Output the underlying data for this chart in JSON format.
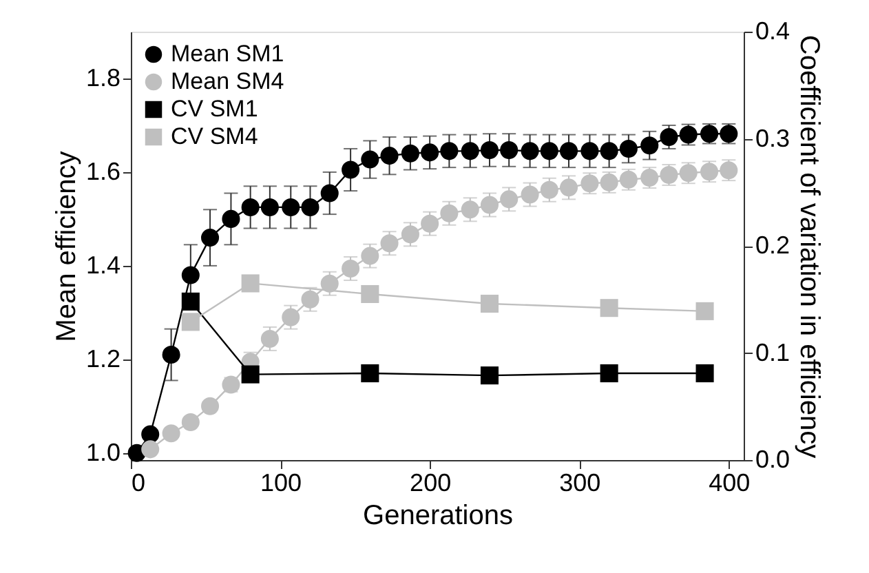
{
  "chart_data": {
    "type": "line",
    "xlabel": "Generations",
    "ylabel": "Mean efficiency",
    "y2label": "Coefficient of variation in efficiency",
    "x": [
      4,
      13,
      27,
      40,
      53,
      67,
      80,
      93,
      107,
      120,
      133,
      147,
      160,
      173,
      187,
      200,
      213,
      227,
      240,
      253,
      267,
      280,
      293,
      307,
      320,
      333,
      347,
      360,
      373,
      387,
      400
    ],
    "xlim": [
      0,
      410
    ],
    "xticks": [
      0,
      100,
      200,
      300,
      400
    ],
    "ylim": [
      0.985,
      1.9
    ],
    "yticks": [
      {
        "value": 1.0,
        "label": "1.0"
      },
      1.2,
      1.4,
      1.6,
      1.8
    ],
    "y2lim": [
      0,
      0.4
    ],
    "y2ticks": [
      {
        "value": 0,
        "label": "0.0"
      },
      0.1,
      0.2,
      0.3,
      0.4
    ],
    "grid": false,
    "legend": "top left",
    "series": [
      {
        "name": "Mean SM1",
        "color": "#000000",
        "marker": "circle",
        "values": [
          1.0,
          1.04,
          1.21,
          1.38,
          1.46,
          1.5,
          1.525,
          1.525,
          1.525,
          1.525,
          1.555,
          1.605,
          1.627,
          1.635,
          1.64,
          1.642,
          1.645,
          1.645,
          1.647,
          1.647,
          1.645,
          1.645,
          1.645,
          1.645,
          1.645,
          1.65,
          1.657,
          1.675,
          1.68,
          1.682,
          1.682
        ],
        "errors": [
          0.005,
          0.01,
          0.055,
          0.065,
          0.06,
          0.055,
          0.045,
          0.045,
          0.045,
          0.045,
          0.045,
          0.045,
          0.04,
          0.04,
          0.035,
          0.035,
          0.035,
          0.035,
          0.035,
          0.035,
          0.035,
          0.035,
          0.035,
          0.035,
          0.035,
          0.03,
          0.03,
          0.025,
          0.022,
          0.021,
          0.021
        ]
      },
      {
        "name": "Mean SM4",
        "color": "#bfbfbf",
        "marker": "circle",
        "values": [
          null,
          1.008,
          1.042,
          1.066,
          1.1,
          1.146,
          1.195,
          1.244,
          1.29,
          1.328,
          1.362,
          1.394,
          1.421,
          1.448,
          1.467,
          1.49,
          1.512,
          1.52,
          1.53,
          1.542,
          1.552,
          1.562,
          1.567,
          1.576,
          1.578,
          1.584,
          1.588,
          1.594,
          1.598,
          1.601,
          1.604
        ],
        "errors": [
          null,
          0.005,
          0.005,
          0.008,
          0.01,
          0.015,
          0.02,
          0.025,
          0.025,
          0.025,
          0.025,
          0.025,
          0.025,
          0.025,
          0.025,
          0.025,
          0.025,
          0.025,
          0.025,
          0.025,
          0.025,
          0.025,
          0.025,
          0.022,
          0.022,
          0.022,
          0.022,
          0.022,
          0.022,
          0.022,
          0.022
        ]
      },
      {
        "name": "CV SM1",
        "color": "#000000",
        "marker": "square",
        "axis": "y2",
        "x": [
          40,
          80,
          160,
          240,
          320,
          384
        ],
        "values": [
          0.148,
          0.08,
          0.081,
          0.079,
          0.081,
          0.081
        ]
      },
      {
        "name": "CV SM4",
        "color": "#bfbfbf",
        "marker": "square",
        "axis": "y2",
        "x": [
          40,
          80,
          160,
          240,
          320,
          384
        ],
        "values": [
          0.129,
          0.165,
          0.155,
          0.146,
          0.142,
          0.139
        ]
      }
    ]
  }
}
